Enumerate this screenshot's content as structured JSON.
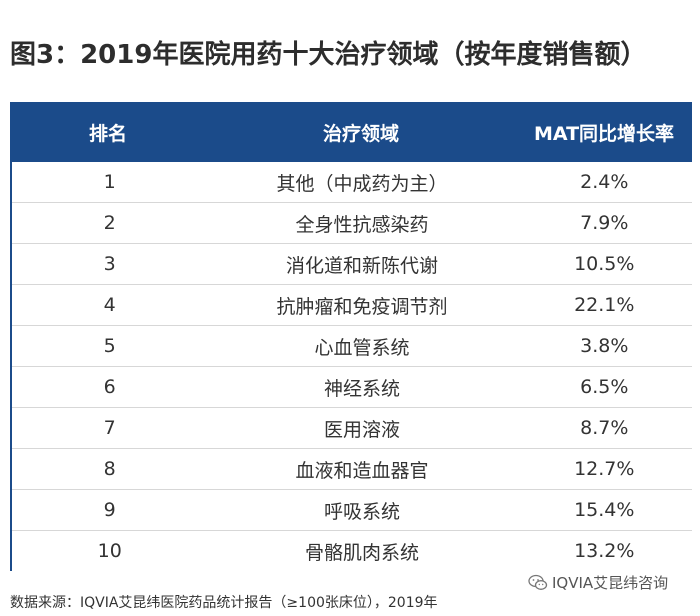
{
  "title": "图3：2019年医院用药十大治疗领域（按年度销售额）",
  "table": {
    "headers": [
      "排名",
      "治疗领域",
      "MAT同比增长率"
    ],
    "rows": [
      {
        "rank": "1",
        "area": "其他（中成药为主）",
        "growth": "2.4%"
      },
      {
        "rank": "2",
        "area": "全身性抗感染药",
        "growth": "7.9%"
      },
      {
        "rank": "3",
        "area": "消化道和新陈代谢",
        "growth": "10.5%"
      },
      {
        "rank": "4",
        "area": "抗肿瘤和免疫调节剂",
        "growth": "22.1%"
      },
      {
        "rank": "5",
        "area": "心血管系统",
        "growth": "3.8%"
      },
      {
        "rank": "6",
        "area": "神经系统",
        "growth": "6.5%"
      },
      {
        "rank": "7",
        "area": "医用溶液",
        "growth": "8.7%"
      },
      {
        "rank": "8",
        "area": "血液和造血器官",
        "growth": "12.7%"
      },
      {
        "rank": "9",
        "area": "呼吸系统",
        "growth": "15.4%"
      },
      {
        "rank": "10",
        "area": "骨骼肌肉系统",
        "growth": "13.2%"
      }
    ]
  },
  "footer": "数据来源：IQVIA艾昆纬医院药品统计报告（≥100张床位），2019年",
  "watermark": {
    "text": "IQVIA艾昆纬咨询",
    "icon": "wechat-icon",
    "color": "#555555"
  },
  "colors": {
    "header_bg": "#1b4b8a",
    "header_text": "#ffffff"
  }
}
